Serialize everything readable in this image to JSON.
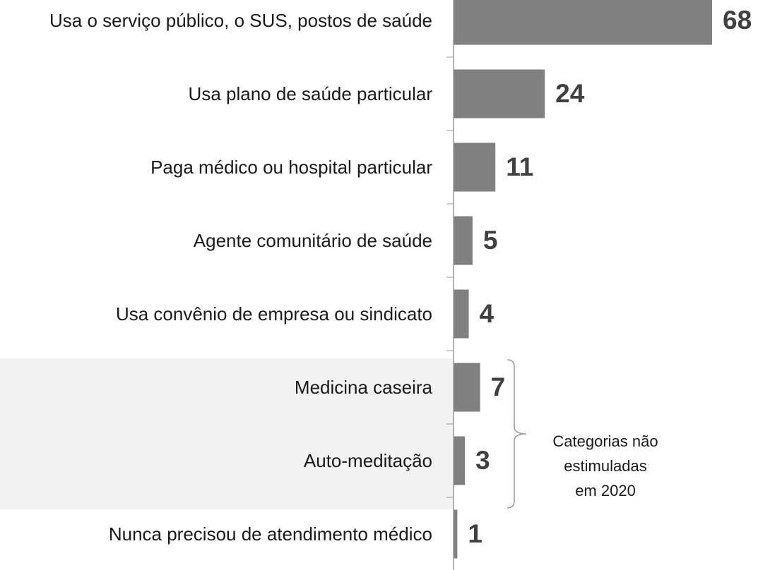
{
  "chart_data": {
    "type": "barh",
    "categories": [
      "Usa o serviço público, o SUS, postos de saúde",
      "Usa plano de saúde particular",
      "Paga médico ou hospital particular",
      "Agente comunitário de saúde",
      "Usa convênio de empresa ou sindicato",
      "Medicina caseira",
      "Auto-meditação",
      "Nunca precisou de atendimento médico"
    ],
    "values": [
      68,
      24,
      11,
      5,
      4,
      7,
      3,
      1
    ],
    "color": "#808080",
    "xlim": [
      0,
      68
    ],
    "annotation": [
      "Categorias não",
      "estimuladas",
      "em 2020"
    ]
  }
}
